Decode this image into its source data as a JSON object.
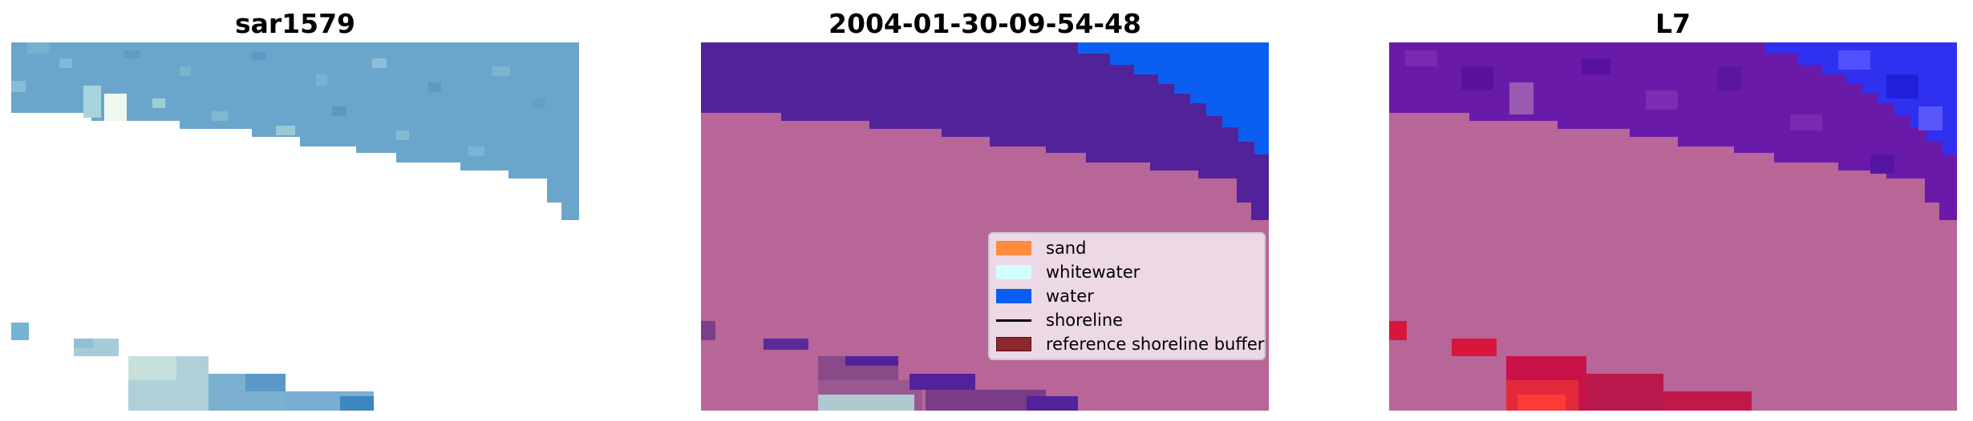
{
  "panels": [
    {
      "title": "sar1579"
    },
    {
      "title": "2004-01-30-09-54-48"
    },
    {
      "title": "L7"
    }
  ],
  "legend": [
    {
      "label": "sand",
      "color": "#ff8c3c"
    },
    {
      "label": "whitewater",
      "color": "#d2ffff"
    },
    {
      "label": "water",
      "color": "#0a5ef0"
    },
    {
      "label": "shoreline",
      "color": "#000000"
    },
    {
      "label": "reference shoreline buffer",
      "color": "#8c2830"
    }
  ],
  "colors": {
    "land": "#b86598",
    "water_class": "#0a5ef0",
    "water_tint": "#52229a",
    "sar_image": "#6aa6cc",
    "l7_water": "#6a1aa8",
    "l7_sea": "#3030f0",
    "l7_red": "#d8163c"
  }
}
